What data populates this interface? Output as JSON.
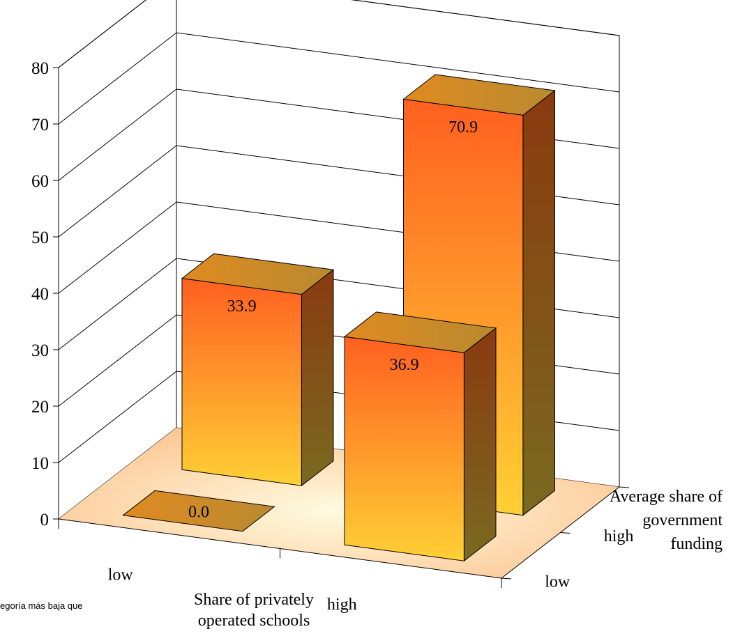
{
  "chart_data": {
    "type": "bar",
    "style": "3d-grid",
    "ylim": [
      0,
      80
    ],
    "yticks": [
      "0",
      "10",
      "20",
      "30",
      "40",
      "50",
      "60",
      "70",
      "80"
    ],
    "x_axis": {
      "label_lines": [
        "Share of privately",
        "operated schools"
      ],
      "categories": [
        "low",
        "high"
      ]
    },
    "z_axis": {
      "label_lines": [
        "Average share of",
        "government",
        "funding"
      ],
      "categories": [
        "low",
        "high"
      ]
    },
    "bars": [
      {
        "x": "low",
        "z": "low",
        "value": 0.0,
        "label": "0.0"
      },
      {
        "x": "low",
        "z": "high",
        "value": 33.9,
        "label": "33.9"
      },
      {
        "x": "high",
        "z": "low",
        "value": 36.9,
        "label": "36.9"
      },
      {
        "x": "high",
        "z": "high",
        "value": 70.9,
        "label": "70.9"
      }
    ],
    "colors": {
      "bar_front_top": "#ff6020",
      "bar_front_bottom": "#ffd035",
      "bar_side": "#7a5a1a",
      "floor": "#fcd0a0"
    }
  },
  "footnote": "egoría más baja que"
}
